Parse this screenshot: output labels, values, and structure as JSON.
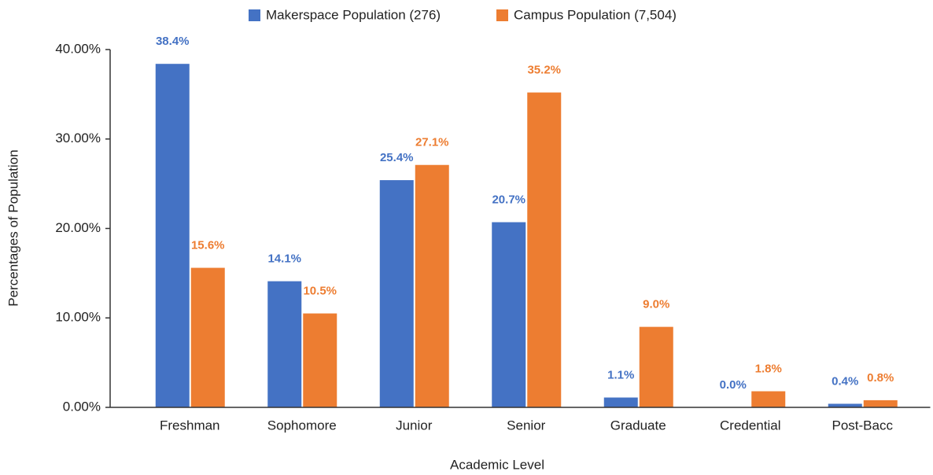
{
  "chart_data": {
    "type": "bar",
    "x_label": "Academic Level",
    "y_label": "Percentages of Population",
    "categories": [
      "Freshman",
      "Sophomore",
      "Junior",
      "Senior",
      "Graduate",
      "Credential",
      "Post-Bacc"
    ],
    "series": [
      {
        "name": "Makerspace Population (276)",
        "color": "#4472c4",
        "values": [
          38.4,
          14.1,
          25.4,
          20.7,
          1.1,
          0.0,
          0.4
        ],
        "value_labels": [
          "38.4%",
          "14.1%",
          "25.4%",
          "20.7%",
          "1.1%",
          "0.0%",
          "0.4%"
        ]
      },
      {
        "name": "Campus Population (7,504)",
        "color": "#ed7d31",
        "values": [
          15.6,
          10.5,
          27.1,
          35.2,
          9.0,
          1.8,
          0.8
        ],
        "value_labels": [
          "15.6%",
          "10.5%",
          "27.1%",
          "35.2%",
          "9.0%",
          "1.8%",
          "0.8%"
        ]
      }
    ],
    "ylim": [
      0,
      40
    ],
    "yticks": [
      {
        "value": 0,
        "label": "0.00%"
      },
      {
        "value": 10,
        "label": "10.00%"
      },
      {
        "value": 20,
        "label": "20.00%"
      },
      {
        "value": 30,
        "label": "30.00%"
      },
      {
        "value": 40,
        "label": "40.00%"
      }
    ],
    "legend": "top"
  }
}
